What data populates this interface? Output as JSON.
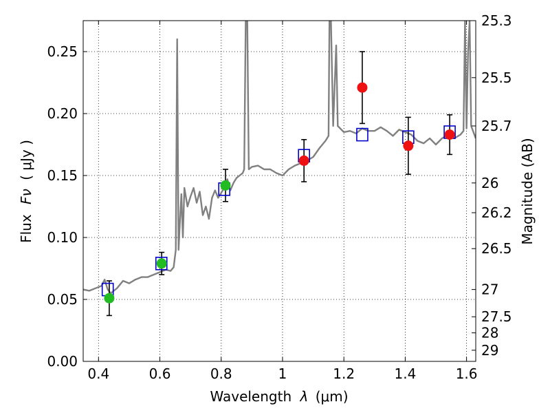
{
  "chart_data": {
    "type": "scatter",
    "xlabel": "Wavelength",
    "xlabel_symbol": "λ",
    "xlabel_unit": "(μm)",
    "ylabel": "Flux",
    "ylabel_symbol": "Fν",
    "ylabel_unit": "( μJy )",
    "y2label": "Magnitude (AB)",
    "xlim": [
      0.35,
      1.63
    ],
    "ylim": [
      0.0,
      0.275
    ],
    "grid": true,
    "x_ticks": [
      0.4,
      0.6,
      0.8,
      1.0,
      1.2,
      1.4,
      1.6
    ],
    "x_tick_labels": [
      "0.4",
      "0.6",
      "0.8",
      "1",
      "1.2",
      "1.4",
      "1.6"
    ],
    "y_ticks": [
      0.0,
      0.05,
      0.1,
      0.15,
      0.2,
      0.25
    ],
    "y_tick_labels": [
      "0.00",
      "0.05",
      "0.10",
      "0.15",
      "0.20",
      "0.25"
    ],
    "y2_ticks": [
      {
        "label": "25.3",
        "flux": 0.275
      },
      {
        "label": "25.5",
        "flux": 0.229
      },
      {
        "label": "25.7",
        "flux": 0.19
      },
      {
        "label": "26",
        "flux": 0.144
      },
      {
        "label": "26.2",
        "flux": 0.12
      },
      {
        "label": "26.5",
        "flux": 0.091
      },
      {
        "label": "27",
        "flux": 0.058
      },
      {
        "label": "27.5",
        "flux": 0.036
      },
      {
        "label": "28",
        "flux": 0.023
      },
      {
        "label": "29",
        "flux": 0.009
      }
    ],
    "model_points": [
      {
        "x": 0.43,
        "y": 0.058
      },
      {
        "x": 0.605,
        "y": 0.079
      },
      {
        "x": 0.81,
        "y": 0.139
      },
      {
        "x": 1.07,
        "y": 0.166
      },
      {
        "x": 1.26,
        "y": 0.183
      },
      {
        "x": 1.41,
        "y": 0.181
      },
      {
        "x": 1.545,
        "y": 0.185
      }
    ],
    "observed_points": [
      {
        "x": 0.435,
        "y": 0.051,
        "err": 0.014,
        "color": "green"
      },
      {
        "x": 0.606,
        "y": 0.079,
        "err": 0.009,
        "color": "green"
      },
      {
        "x": 0.814,
        "y": 0.142,
        "err": 0.013,
        "color": "green"
      },
      {
        "x": 1.07,
        "y": 0.162,
        "err": 0.017,
        "color": "red"
      },
      {
        "x": 1.26,
        "y": 0.221,
        "err": 0.029,
        "color": "red"
      },
      {
        "x": 1.41,
        "y": 0.174,
        "err": 0.023,
        "color": "red"
      },
      {
        "x": 1.545,
        "y": 0.183,
        "err": 0.016,
        "color": "red"
      }
    ],
    "spectrum": [
      [
        0.35,
        0.058
      ],
      [
        0.37,
        0.057
      ],
      [
        0.39,
        0.059
      ],
      [
        0.41,
        0.061
      ],
      [
        0.42,
        0.066
      ],
      [
        0.43,
        0.058
      ],
      [
        0.44,
        0.055
      ],
      [
        0.46,
        0.059
      ],
      [
        0.48,
        0.065
      ],
      [
        0.5,
        0.063
      ],
      [
        0.52,
        0.066
      ],
      [
        0.54,
        0.068
      ],
      [
        0.56,
        0.068
      ],
      [
        0.58,
        0.07
      ],
      [
        0.6,
        0.072
      ],
      [
        0.62,
        0.074
      ],
      [
        0.635,
        0.073
      ],
      [
        0.645,
        0.076
      ],
      [
        0.652,
        0.09
      ],
      [
        0.6565,
        0.26
      ],
      [
        0.661,
        0.09
      ],
      [
        0.665,
        0.11
      ],
      [
        0.67,
        0.135
      ],
      [
        0.675,
        0.1
      ],
      [
        0.68,
        0.14
      ],
      [
        0.69,
        0.125
      ],
      [
        0.7,
        0.133
      ],
      [
        0.71,
        0.14
      ],
      [
        0.72,
        0.128
      ],
      [
        0.73,
        0.137
      ],
      [
        0.74,
        0.118
      ],
      [
        0.75,
        0.125
      ],
      [
        0.76,
        0.115
      ],
      [
        0.77,
        0.132
      ],
      [
        0.78,
        0.138
      ],
      [
        0.79,
        0.132
      ],
      [
        0.8,
        0.136
      ],
      [
        0.81,
        0.14
      ],
      [
        0.82,
        0.147
      ],
      [
        0.83,
        0.138
      ],
      [
        0.84,
        0.144
      ],
      [
        0.85,
        0.148
      ],
      [
        0.86,
        0.15
      ],
      [
        0.87,
        0.152
      ],
      [
        0.875,
        0.155
      ],
      [
        0.88,
        0.275
      ],
      [
        0.885,
        0.275
      ],
      [
        0.89,
        0.155
      ],
      [
        0.9,
        0.157
      ],
      [
        0.92,
        0.158
      ],
      [
        0.94,
        0.155
      ],
      [
        0.96,
        0.155
      ],
      [
        0.98,
        0.152
      ],
      [
        1.0,
        0.15
      ],
      [
        1.02,
        0.155
      ],
      [
        1.04,
        0.158
      ],
      [
        1.06,
        0.16
      ],
      [
        1.08,
        0.162
      ],
      [
        1.1,
        0.165
      ],
      [
        1.12,
        0.172
      ],
      [
        1.14,
        0.178
      ],
      [
        1.15,
        0.182
      ],
      [
        1.153,
        0.275
      ],
      [
        1.158,
        0.275
      ],
      [
        1.165,
        0.19
      ],
      [
        1.175,
        0.255
      ],
      [
        1.18,
        0.19
      ],
      [
        1.2,
        0.185
      ],
      [
        1.22,
        0.186
      ],
      [
        1.24,
        0.184
      ],
      [
        1.26,
        0.188
      ],
      [
        1.28,
        0.186
      ],
      [
        1.3,
        0.186
      ],
      [
        1.32,
        0.189
      ],
      [
        1.34,
        0.186
      ],
      [
        1.36,
        0.182
      ],
      [
        1.38,
        0.187
      ],
      [
        1.4,
        0.185
      ],
      [
        1.42,
        0.183
      ],
      [
        1.44,
        0.178
      ],
      [
        1.46,
        0.176
      ],
      [
        1.48,
        0.18
      ],
      [
        1.5,
        0.175
      ],
      [
        1.52,
        0.18
      ],
      [
        1.54,
        0.183
      ],
      [
        1.56,
        0.18
      ],
      [
        1.58,
        0.183
      ],
      [
        1.59,
        0.186
      ],
      [
        1.595,
        0.275
      ],
      [
        1.6,
        0.188
      ],
      [
        1.605,
        0.25
      ],
      [
        1.61,
        0.275
      ],
      [
        1.615,
        0.19
      ],
      [
        1.63,
        0.18
      ]
    ]
  }
}
